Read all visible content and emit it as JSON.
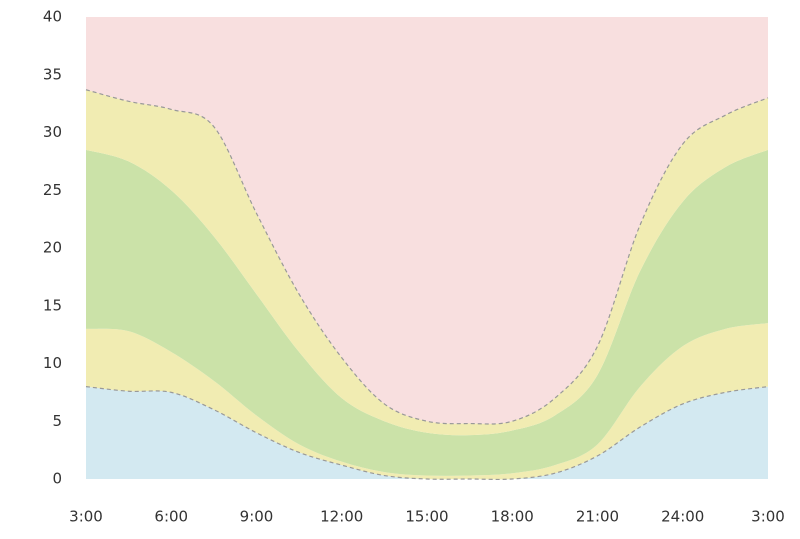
{
  "chart_data": {
    "type": "band",
    "categories": [
      "3:00",
      null,
      "6:00",
      null,
      "9:00",
      null,
      "12:00",
      null,
      "15:00",
      null,
      "18:00",
      null,
      "21:00",
      null,
      "24:00",
      null,
      "3:00"
    ],
    "series": [
      {
        "color": "#d3e9f1",
        "dashed": true,
        "values": [
          8,
          7.6,
          7.5,
          6,
          4,
          2.3,
          1.2,
          0.3,
          0,
          0,
          0,
          0.5,
          2,
          4.5,
          6.5,
          7.5,
          8
        ]
      },
      {
        "color": "#f1ecb2",
        "dashed": false,
        "values": [
          13,
          12.8,
          11,
          8.5,
          5.5,
          3,
          1.5,
          0.6,
          0.3,
          0.3,
          0.5,
          1.2,
          3,
          8,
          11.5,
          13,
          13.5
        ]
      },
      {
        "color": "#cbe2a8",
        "dashed": false,
        "values": [
          28.5,
          27.5,
          25,
          21,
          16,
          11,
          7,
          5,
          4,
          3.8,
          4.2,
          5.5,
          9,
          18,
          24,
          27,
          28.5
        ]
      },
      {
        "color": "#f1ecb2",
        "dashed": true,
        "values": [
          33.7,
          32.7,
          32,
          30.5,
          23,
          16,
          10.5,
          6.5,
          5,
          4.8,
          5,
          7,
          11.5,
          22,
          29,
          31.5,
          33
        ]
      }
    ],
    "above_color": "#f8dfdf",
    "ylim": [
      0,
      40
    ],
    "yticks": [
      0,
      5,
      10,
      15,
      20,
      25,
      30,
      35,
      40
    ]
  }
}
